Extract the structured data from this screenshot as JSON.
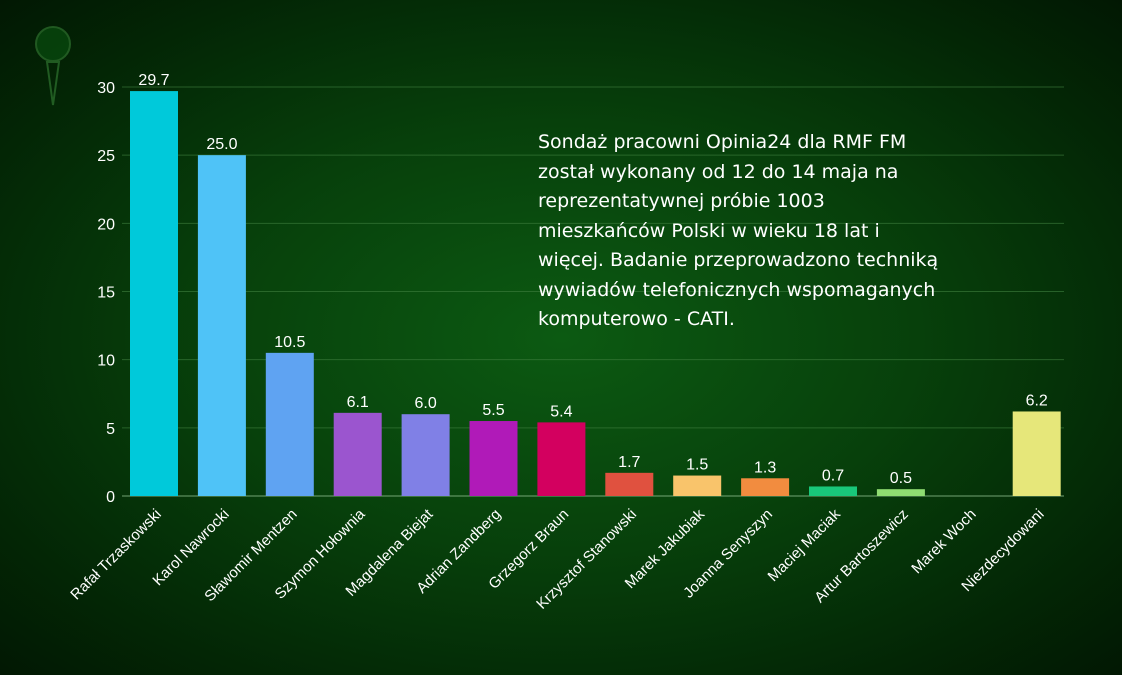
{
  "chart_data": {
    "type": "bar",
    "title": "",
    "xlabel": "",
    "ylabel": "",
    "ylim": [
      0,
      30
    ],
    "yticks": [
      0,
      5,
      10,
      15,
      20,
      25,
      30
    ],
    "grid": true,
    "categories": [
      "Rafał Trzaskowski",
      "Karol Nawrocki",
      "Sławomir Mentzen",
      "Szymon Hołownia",
      "Magdalena Biejat",
      "Adrian Zandberg",
      "Grzegorz Braun",
      "Krzysztof Stanowski",
      "Marek Jakubiak",
      "Joanna Senyszyn",
      "Maciej Maciak",
      "Artur Bartoszewicz",
      "Marek Woch",
      "Niezdecydowani"
    ],
    "values": [
      29.7,
      25.0,
      10.5,
      6.1,
      6.0,
      5.5,
      5.4,
      1.7,
      1.5,
      1.3,
      0.7,
      0.5,
      null,
      6.2
    ],
    "labels": [
      "29.7",
      "25.0",
      "10.5",
      "6.1",
      "6.0",
      "5.5",
      "5.4",
      "1.7",
      "1.5",
      "1.3",
      "0.7",
      "0.5",
      "",
      "6.2"
    ],
    "colors": [
      "#00c9da",
      "#4fc3f7",
      "#5fa3f2",
      "#9b55cf",
      "#8080e6",
      "#b01ab8",
      "#d3005f",
      "#e0513f",
      "#f9c46b",
      "#f28c3f",
      "#19c77a",
      "#8fdd72",
      "#000000",
      "#e6e77a"
    ]
  },
  "note": "Sondaż pracowni Opinia24 dla RMF FM\nzostał wykonany od 12 do 14 maja na\nreprezentatywnej próbie 1003\nmieszkańców Polski w wieku 18 lat i\nwięcej. Badanie przeprowadzono techniką\nwywiadów telefonicznych wspomaganych\nkomputerowo - CATI.",
  "logo_icon": "pin-icon"
}
